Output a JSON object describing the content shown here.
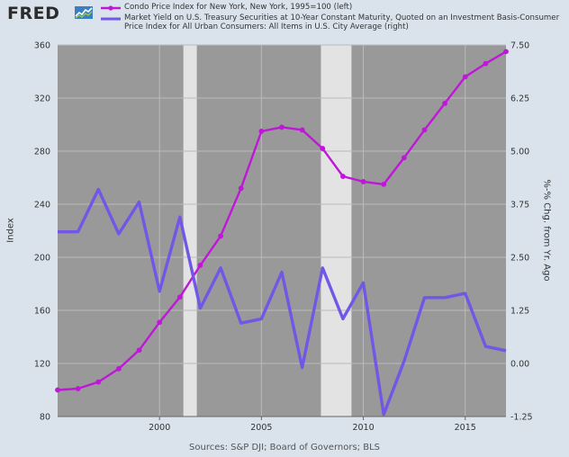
{
  "brand": {
    "logo_text": "FRED"
  },
  "chart_data": {
    "type": "line",
    "legend_position": "top",
    "grid": true,
    "series": [
      {
        "name": "Condo Price Index for New York, New York, 1995=100 (left)",
        "axis": "left",
        "color": "#bf17d8",
        "markers": true,
        "x": [
          1995,
          1996,
          1997,
          1998,
          1999,
          2000,
          2001,
          2002,
          2003,
          2004,
          2005,
          2006,
          2007,
          2008,
          2009,
          2010,
          2011,
          2012,
          2013,
          2014,
          2015,
          2016,
          2017
        ],
        "values": [
          100,
          101,
          106,
          116,
          130,
          151,
          170,
          194,
          216,
          252,
          295,
          298,
          296,
          282,
          261,
          257,
          255,
          275,
          296,
          316,
          336,
          346,
          355
        ]
      },
      {
        "name": "Market Yield on U.S. Treasury Securities at 10-Year Constant Maturity, Quoted on an Investment Basis-Consumer Price Index for All Urban Consumers: All Items in U.S. City Average (right)",
        "axis": "right",
        "color": "#7257e6",
        "markers": false,
        "x": [
          1995,
          1996,
          1997,
          1998,
          1999,
          2000,
          2001,
          2002,
          2003,
          2004,
          2005,
          2006,
          2007,
          2008,
          2009,
          2010,
          2011,
          2012,
          2013,
          2014,
          2015,
          2016,
          2017
        ],
        "values": [
          3.1,
          3.1,
          4.1,
          3.05,
          3.8,
          1.7,
          3.45,
          1.3,
          2.25,
          0.95,
          1.05,
          2.15,
          -0.1,
          2.25,
          1.05,
          1.9,
          -1.2,
          0.05,
          1.55,
          1.55,
          1.65,
          0.4,
          0.3
        ]
      }
    ],
    "xlim": [
      1995,
      2017
    ],
    "x_ticks": [
      2000,
      2005,
      2010,
      2015
    ],
    "ylim_left": [
      80,
      360
    ],
    "y_ticks_left": [
      80,
      120,
      160,
      200,
      240,
      280,
      320,
      360
    ],
    "ylabel_left": "Index",
    "ylim_right": [
      -1.25,
      7.5
    ],
    "y_ticks_right": [
      "-1.25",
      "0.00",
      "1.25",
      "2.50",
      "3.75",
      "5.00",
      "6.25",
      "7.50"
    ],
    "ylabel_right": "%-% Chg. from Yr. Ago",
    "recessions": [
      [
        2001.17,
        2001.83
      ],
      [
        2007.92,
        2009.42
      ]
    ],
    "colors": {
      "plot_bg": "#999999",
      "recession": "#e3e3e3",
      "gridline": "#bbbbbb",
      "page_bg": "#dae3eb"
    }
  },
  "footer": {
    "sources": "Sources: S&P DJI; Board of Governors; BLS"
  }
}
